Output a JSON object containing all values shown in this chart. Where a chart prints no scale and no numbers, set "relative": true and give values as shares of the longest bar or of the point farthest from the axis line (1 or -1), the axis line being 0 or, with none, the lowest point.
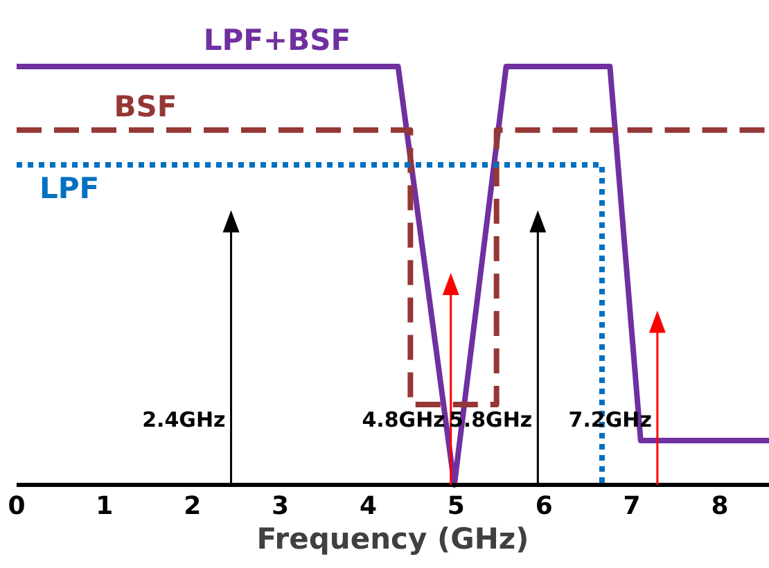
{
  "chart_data": {
    "type": "line",
    "relative": true,
    "xlabel": "Frequency (GHz)",
    "xlim": [
      0,
      8.56
    ],
    "xticks": [
      0,
      1,
      2,
      3,
      4,
      5,
      6,
      7,
      8
    ],
    "marker": "none",
    "grid": false,
    "legend": false,
    "series": [
      {
        "name": "LPF+BSF",
        "color": "#7030a0",
        "line_style": "solid",
        "x": [
          0,
          4.34,
          4.98,
          5.57,
          6.75,
          7.1,
          8.56
        ],
        "values": [
          1,
          1,
          0,
          1,
          1,
          0.106,
          0.106
        ]
      },
      {
        "name": "BSF",
        "color": "#953735",
        "line_style": "dashed",
        "x": [
          0,
          4.48,
          4.48,
          5.46,
          5.46,
          8.56
        ],
        "values": [
          0.848,
          0.848,
          0.192,
          0.192,
          0.848,
          0.848
        ]
      },
      {
        "name": "LPF",
        "color": "#0070c0",
        "line_style": "dotted",
        "x": [
          0,
          6.66,
          6.66
        ],
        "values": [
          0.765,
          0.765,
          0
        ]
      },
      {
        "type": "lollipop",
        "marker": "triangle",
        "colors": [
          "#000000",
          "#ff0000",
          "#000000",
          "#ff0000"
        ],
        "x": [
          2.44,
          4.94,
          5.93,
          7.29
        ],
        "values": [
          0.63,
          0.48,
          0.63,
          0.39
        ]
      }
    ],
    "annotations": [
      "2.4GHz",
      "4.8GHz",
      "5.8GHz",
      "7.2GHz"
    ]
  }
}
